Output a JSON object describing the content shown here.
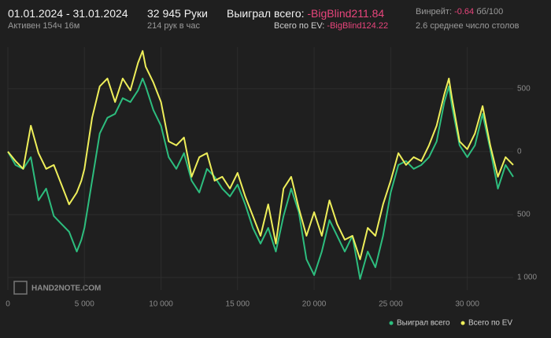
{
  "header": {
    "period": "01.01.2024 - 31.01.2024",
    "active": "Активен 154ч 16м",
    "hands": "32 945 Руки",
    "hands_per_hour": "214 рук в час",
    "won_label": "Выиграл всего:",
    "won_value": "-BigBlind211.84",
    "ev_label": "Всего по EV:",
    "ev_value": "-BigBlind124.22",
    "winrate_label": "Винрейт:",
    "winrate_value": "-0.64",
    "winrate_unit": "бб/100",
    "tables": "2.6 среднее число столов",
    "watermark": "HAND2NOTE.COM"
  },
  "chart_data": {
    "type": "line",
    "x": [
      0,
      500,
      1000,
      1500,
      2000,
      2500,
      3000,
      3500,
      4000,
      4500,
      4800,
      5000,
      5500,
      6000,
      6500,
      7000,
      7500,
      8000,
      8500,
      8800,
      9000,
      9500,
      10000,
      10500,
      11000,
      11500,
      12000,
      12500,
      13000,
      13500,
      14000,
      14500,
      15000,
      15500,
      16000,
      16500,
      17000,
      17500,
      18000,
      18500,
      19000,
      19500,
      20000,
      20500,
      21000,
      21500,
      22000,
      22500,
      23000,
      23500,
      24000,
      24500,
      25000,
      25500,
      26000,
      26500,
      27000,
      27500,
      28000,
      28500,
      28800,
      29000,
      29500,
      30000,
      30500,
      31000,
      31500,
      32000,
      32500,
      33000
    ],
    "series": [
      {
        "name": "Выиграл всего",
        "color": "#2dbd7e",
        "values": [
          0,
          -106,
          -137,
          -44,
          -387,
          -294,
          -512,
          -575,
          -637,
          -794,
          -700,
          -606,
          -231,
          144,
          269,
          300,
          425,
          394,
          487,
          581,
          519,
          331,
          206,
          -44,
          -137,
          -12,
          -231,
          -325,
          -137,
          -200,
          -294,
          -356,
          -262,
          -419,
          -606,
          -731,
          -606,
          -794,
          -512,
          -294,
          -481,
          -856,
          -981,
          -794,
          -544,
          -669,
          -794,
          -669,
          -1012,
          -794,
          -919,
          -669,
          -325,
          -106,
          -75,
          -137,
          -106,
          -44,
          81,
          394,
          519,
          362,
          50,
          -44,
          50,
          300,
          19,
          -294,
          -106,
          -200
        ]
      },
      {
        "name": "Всего по EV",
        "color": "#eeee5a",
        "values": [
          0,
          -75,
          -137,
          206,
          -12,
          -137,
          -106,
          -262,
          -419,
          -325,
          -231,
          -137,
          269,
          519,
          581,
          394,
          581,
          487,
          706,
          800,
          675,
          550,
          394,
          81,
          50,
          112,
          -200,
          -44,
          -12,
          -231,
          -200,
          -294,
          -169,
          -356,
          -512,
          -669,
          -419,
          -731,
          -294,
          -200,
          -450,
          -669,
          -481,
          -669,
          -387,
          -575,
          -700,
          -669,
          -856,
          -606,
          -669,
          -419,
          -231,
          -12,
          -106,
          -44,
          -75,
          50,
          206,
          456,
          581,
          425,
          81,
          19,
          144,
          362,
          50,
          -200,
          -44,
          -106
        ]
      }
    ],
    "xlim": [
      0,
      33000
    ],
    "ylim": [
      -1100,
      830
    ],
    "xticks": [
      0,
      {
        "value": 5000,
        "label": "5 000"
      },
      {
        "value": 10000,
        "label": "10 000"
      },
      {
        "value": 15000,
        "label": "15 000"
      },
      {
        "value": 20000,
        "label": "20 000"
      },
      {
        "value": 25000,
        "label": "25 000"
      },
      {
        "value": 30000,
        "label": "30 000"
      }
    ],
    "yticks": [
      500,
      0,
      {
        "value": -500,
        "label": "500"
      },
      {
        "value": -1000,
        "label": "1 000"
      }
    ],
    "grid": true
  }
}
